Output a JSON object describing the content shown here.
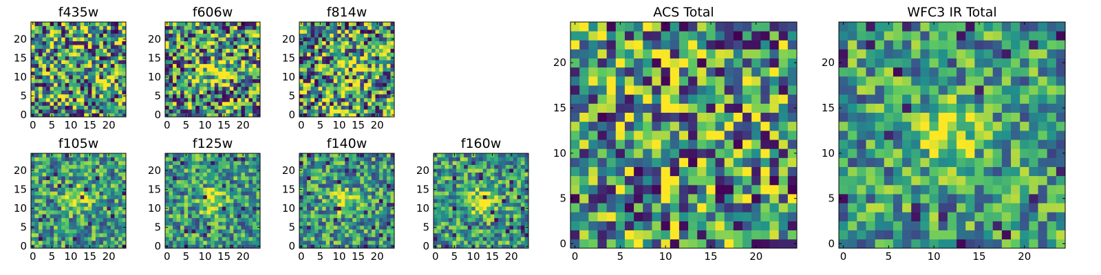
{
  "figure": {
    "background": "#ffffff"
  },
  "colormap": {
    "name": "viridis",
    "stops": [
      "#440154",
      "#3b528b",
      "#21918c",
      "#5ec962",
      "#fde725"
    ]
  },
  "chart_data": [
    {
      "type": "heatmap",
      "id": "f435w",
      "title": "f435w",
      "xlabel": "",
      "ylabel": "",
      "grid": false,
      "xlim": [
        0,
        24
      ],
      "ylim": [
        0,
        24
      ],
      "xticks": [
        "0",
        "5",
        "10",
        "15",
        "20"
      ],
      "yticks": [
        "0",
        "5",
        "10",
        "15",
        "20"
      ],
      "shape": [
        25,
        25
      ],
      "peak": null,
      "noise": "high",
      "seed": 11
    },
    {
      "type": "heatmap",
      "id": "f606w",
      "title": "f606w",
      "xlabel": "",
      "ylabel": "",
      "grid": false,
      "xlim": [
        0,
        24
      ],
      "ylim": [
        0,
        24
      ],
      "xticks": [
        "0",
        "5",
        "10",
        "15",
        "20"
      ],
      "yticks": [
        "0",
        "5",
        "10",
        "15",
        "20"
      ],
      "shape": [
        25,
        25
      ],
      "peak": [
        12,
        12
      ],
      "noise": "high",
      "seed": 23
    },
    {
      "type": "heatmap",
      "id": "f814w",
      "title": "f814w",
      "xlabel": "",
      "ylabel": "",
      "grid": false,
      "xlim": [
        0,
        24
      ],
      "ylim": [
        0,
        24
      ],
      "xticks": [
        "0",
        "5",
        "10",
        "15",
        "20"
      ],
      "yticks": [
        "0",
        "5",
        "10",
        "15",
        "20"
      ],
      "shape": [
        25,
        25
      ],
      "peak": [
        12,
        12
      ],
      "noise": "high",
      "seed": 37
    },
    {
      "type": "heatmap",
      "id": "f105w",
      "title": "f105w",
      "xlabel": "",
      "ylabel": "",
      "grid": false,
      "xlim": [
        0,
        24
      ],
      "ylim": [
        0,
        24
      ],
      "xticks": [
        "0",
        "5",
        "10",
        "15",
        "20"
      ],
      "yticks": [
        "0",
        "5",
        "10",
        "15",
        "20"
      ],
      "shape": [
        25,
        25
      ],
      "peak": [
        12,
        13
      ],
      "noise": "medium",
      "seed": 41
    },
    {
      "type": "heatmap",
      "id": "f125w",
      "title": "f125w",
      "xlabel": "",
      "ylabel": "",
      "grid": false,
      "xlim": [
        0,
        24
      ],
      "ylim": [
        0,
        24
      ],
      "xticks": [
        "0",
        "5",
        "10",
        "15",
        "20"
      ],
      "yticks": [
        "0",
        "5",
        "10",
        "15",
        "20"
      ],
      "shape": [
        25,
        25
      ],
      "peak": [
        12,
        12
      ],
      "noise": "medium",
      "seed": 53
    },
    {
      "type": "heatmap",
      "id": "f140w",
      "title": "f140w",
      "xlabel": "",
      "ylabel": "",
      "grid": false,
      "xlim": [
        0,
        24
      ],
      "ylim": [
        0,
        24
      ],
      "xticks": [
        "0",
        "5",
        "10",
        "15",
        "20"
      ],
      "yticks": [
        "0",
        "5",
        "10",
        "15",
        "20"
      ],
      "shape": [
        25,
        25
      ],
      "peak": [
        11,
        12
      ],
      "noise": "medium",
      "seed": 67
    },
    {
      "type": "heatmap",
      "id": "f160w",
      "title": "f160w",
      "xlabel": "",
      "ylabel": "",
      "grid": false,
      "xlim": [
        0,
        24
      ],
      "ylim": [
        0,
        24
      ],
      "xticks": [
        "0",
        "5",
        "10",
        "15",
        "20"
      ],
      "yticks": [
        "0",
        "5",
        "10",
        "15",
        "20"
      ],
      "shape": [
        25,
        25
      ],
      "peak": [
        12,
        12
      ],
      "noise": "medium",
      "seed": 79
    },
    {
      "type": "heatmap",
      "id": "acs-total",
      "title": "ACS Total",
      "xlabel": "",
      "ylabel": "",
      "grid": false,
      "xlim": [
        0,
        24
      ],
      "ylim": [
        0,
        24
      ],
      "xticks": [
        "0",
        "5",
        "10",
        "15",
        "20"
      ],
      "yticks": [
        "0",
        "5",
        "10",
        "15",
        "20"
      ],
      "shape": [
        25,
        25
      ],
      "peak": null,
      "noise": "high",
      "seed": 83
    },
    {
      "type": "heatmap",
      "id": "wfc3-ir-total",
      "title": "WFC3 IR Total",
      "xlabel": "",
      "ylabel": "",
      "grid": false,
      "xlim": [
        0,
        24
      ],
      "ylim": [
        0,
        24
      ],
      "xticks": [
        "0",
        "5",
        "10",
        "15",
        "20"
      ],
      "yticks": [
        "0",
        "5",
        "10",
        "15",
        "20"
      ],
      "shape": [
        25,
        25
      ],
      "peak": [
        12,
        12
      ],
      "noise": "medium",
      "seed": 97
    }
  ]
}
